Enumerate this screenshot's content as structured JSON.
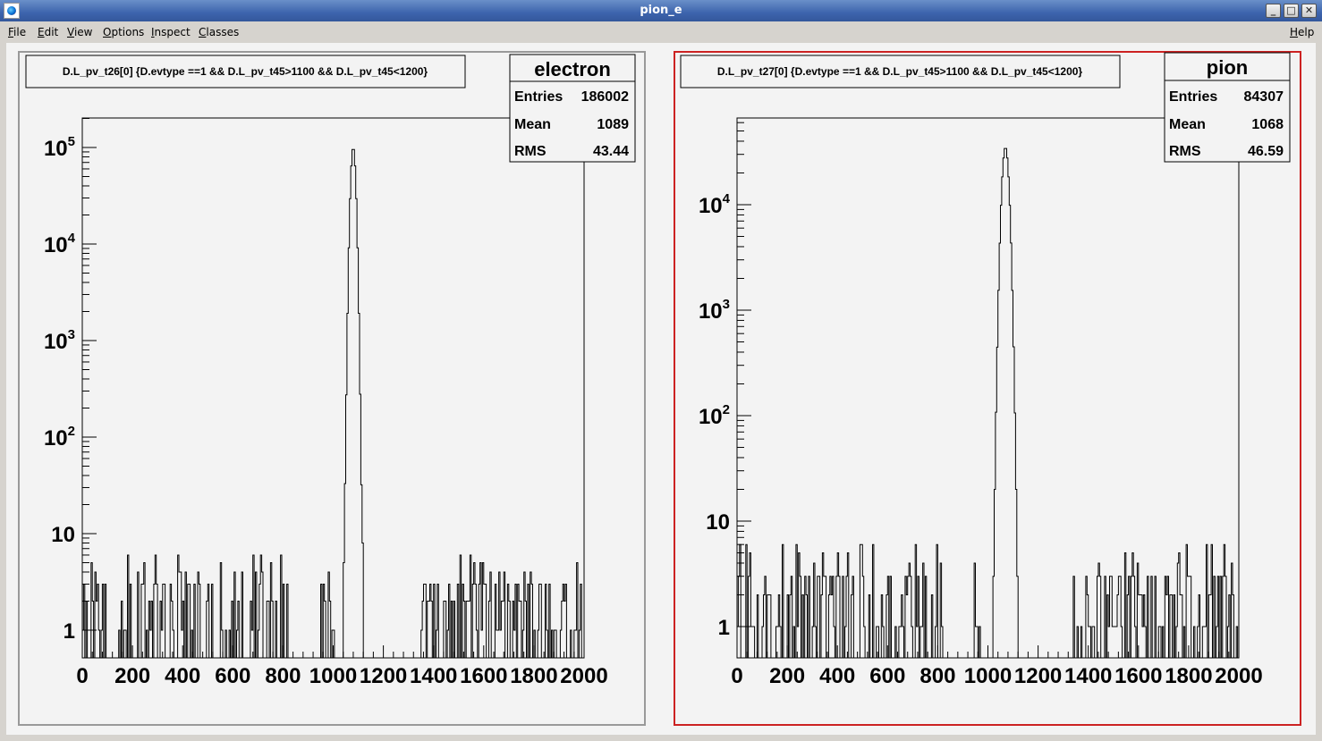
{
  "window": {
    "title": "pion_e",
    "icon": "root-app-icon",
    "buttons": [
      {
        "name": "minimize",
        "glyph": "_"
      },
      {
        "name": "maximize",
        "glyph": "□"
      },
      {
        "name": "close",
        "glyph": "✕"
      }
    ]
  },
  "menu": {
    "items": [
      "File",
      "Edit",
      "View",
      "Options",
      "Inspect",
      "Classes"
    ],
    "help": "Help"
  },
  "colors": {
    "titlebar": "#3d64ad",
    "canvas": "#f3f3f3",
    "selected_pad_border": "#cc2222",
    "pad_border": "#888888"
  },
  "chart_data": [
    {
      "type": "histogram",
      "title": "D.L_pv_t26[0] {D.evtype ==1 && D.L_pv_t45>1100 && D.L_pv_t45<1200}",
      "stats": {
        "name": "electron",
        "entries_label": "Entries",
        "entries": "186002",
        "mean_label": "Mean",
        "mean": "1089",
        "rms_label": "RMS",
        "rms": "43.44"
      },
      "y_scale": "log",
      "xlim": [
        0,
        2000
      ],
      "x_ticks": [
        "0",
        "200",
        "400",
        "600",
        "800",
        "1000",
        "1200",
        "1400",
        "1600",
        "1800",
        "2000"
      ],
      "y_ticks": [
        {
          "base": "1",
          "exp": ""
        },
        {
          "base": "10",
          "exp": ""
        },
        {
          "base": "10",
          "exp": "2"
        },
        {
          "base": "10",
          "exp": "3"
        },
        {
          "base": "10",
          "exp": "4"
        },
        {
          "base": "10",
          "exp": "5"
        }
      ],
      "peak": {
        "x": 1080,
        "y": 100000
      },
      "selected": false
    },
    {
      "type": "histogram",
      "title": "D.L_pv_t27[0] {D.evtype ==1 && D.L_pv_t45>1100 && D.L_pv_t45<1200}",
      "stats": {
        "name": "pion",
        "entries_label": "Entries",
        "entries": "84307",
        "mean_label": "Mean",
        "mean": "1068",
        "rms_label": "RMS",
        "rms": "46.59"
      },
      "y_scale": "log",
      "xlim": [
        0,
        2000
      ],
      "x_ticks": [
        "0",
        "200",
        "400",
        "600",
        "800",
        "1000",
        "1200",
        "1400",
        "1600",
        "1800",
        "2000"
      ],
      "y_ticks": [
        {
          "base": "1",
          "exp": ""
        },
        {
          "base": "10",
          "exp": ""
        },
        {
          "base": "10",
          "exp": "2"
        },
        {
          "base": "10",
          "exp": "3"
        },
        {
          "base": "10",
          "exp": "4"
        }
      ],
      "peak": {
        "x": 1070,
        "y": 35000
      },
      "selected": true
    }
  ]
}
